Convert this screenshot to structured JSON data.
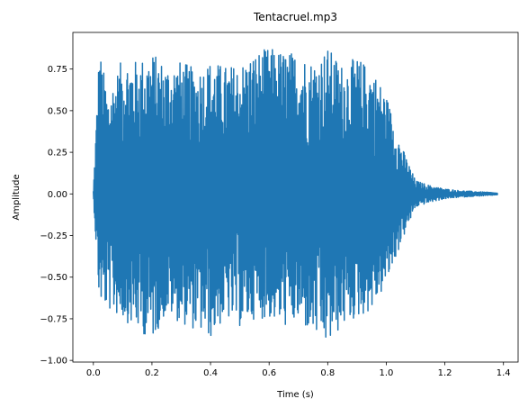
{
  "chart_data": {
    "type": "line",
    "title": "Tentacruel.mp3",
    "xlabel": "Time (s)",
    "ylabel": "Amplitude",
    "xlim": [
      -0.07,
      1.45
    ],
    "ylim": [
      -1.01,
      0.97
    ],
    "xticks": [
      0.0,
      0.2,
      0.4,
      0.6,
      0.8,
      1.0,
      1.2,
      1.4
    ],
    "xtick_labels": [
      "0.0",
      "0.2",
      "0.4",
      "0.6",
      "0.8",
      "1.0",
      "1.2",
      "1.4"
    ],
    "yticks": [
      -1.0,
      -0.75,
      -0.5,
      -0.25,
      0.0,
      0.25,
      0.5,
      0.75
    ],
    "ytick_labels": [
      "−1.00",
      "−0.75",
      "−0.50",
      "−0.25",
      "0.00",
      "0.25",
      "0.50",
      "0.75"
    ],
    "grid": false,
    "series": [
      {
        "color": "#1f77b4",
        "x": [
          0.0,
          0.02,
          0.05,
          0.1,
          0.15,
          0.2,
          0.25,
          0.3,
          0.35,
          0.4,
          0.45,
          0.5,
          0.55,
          0.6,
          0.65,
          0.7,
          0.75,
          0.8,
          0.85,
          0.9,
          0.95,
          1.0,
          1.05,
          1.1,
          1.15,
          1.2,
          1.25,
          1.3,
          1.35,
          1.38
        ],
        "y_max": [
          0.02,
          0.88,
          0.6,
          0.82,
          0.8,
          0.85,
          0.78,
          0.8,
          0.75,
          0.8,
          0.77,
          0.78,
          0.85,
          0.88,
          0.86,
          0.85,
          0.8,
          0.88,
          0.78,
          0.82,
          0.76,
          0.6,
          0.3,
          0.08,
          0.05,
          0.03,
          0.02,
          0.015,
          0.01,
          0.005
        ],
        "y_min": [
          -0.02,
          -0.65,
          -0.7,
          -0.75,
          -0.82,
          -0.88,
          -0.72,
          -0.78,
          -0.82,
          -0.87,
          -0.75,
          -0.8,
          -0.75,
          -0.75,
          -0.8,
          -0.78,
          -0.85,
          -0.92,
          -0.8,
          -0.75,
          -0.7,
          -0.55,
          -0.3,
          -0.08,
          -0.05,
          -0.03,
          -0.02,
          -0.015,
          -0.01,
          -0.005
        ]
      }
    ]
  }
}
